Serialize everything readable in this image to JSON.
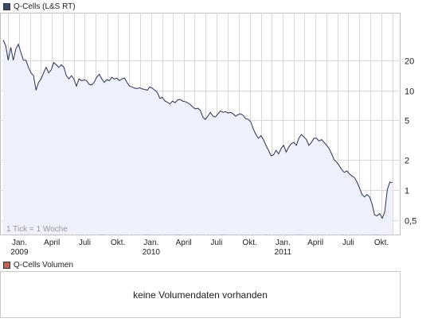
{
  "legend_price": {
    "label": "Q-Cells (L&S RT)",
    "color": "#404a6e"
  },
  "legend_volume": {
    "label": "Q-Cells Volumen",
    "color": "#c8605a"
  },
  "tick_note": "1 Tick = 1 Woche",
  "volume_message": "keine Volumendaten vorhanden",
  "colors": {
    "line": "#2b3150",
    "fill": "#eef0fb",
    "grid": "#d8d8d8",
    "border": "#c0c0c0"
  },
  "chart_data": {
    "type": "area",
    "title": "Q-Cells (L&S RT)",
    "y_scale": "log",
    "ylim": [
      0.35,
      60
    ],
    "xlim": [
      "2008-11-17",
      "2011-11-14"
    ],
    "grid": true,
    "y_ticks": [
      {
        "value": 0.5,
        "label": "0,5"
      },
      {
        "value": 1,
        "label": "1"
      },
      {
        "value": 2,
        "label": "2"
      },
      {
        "value": 5,
        "label": "5"
      },
      {
        "value": 10,
        "label": "10"
      },
      {
        "value": 20,
        "label": "20"
      }
    ],
    "x_ticks": [
      {
        "date": "2009-01-01",
        "label": "Jan.",
        "year": "2009"
      },
      {
        "date": "2009-04-01",
        "label": "April"
      },
      {
        "date": "2009-07-01",
        "label": "Juli"
      },
      {
        "date": "2009-10-01",
        "label": "Okt."
      },
      {
        "date": "2010-01-01",
        "label": "Jan.",
        "year": "2010"
      },
      {
        "date": "2010-04-01",
        "label": "April"
      },
      {
        "date": "2010-07-01",
        "label": "Juli"
      },
      {
        "date": "2010-10-01",
        "label": "Okt."
      },
      {
        "date": "2011-01-01",
        "label": "Jan.",
        "year": "2011"
      },
      {
        "date": "2011-04-01",
        "label": "April"
      },
      {
        "date": "2011-07-01",
        "label": "Juli"
      },
      {
        "date": "2011-10-01",
        "label": "Okt."
      }
    ],
    "series": [
      {
        "points": [
          [
            "2008-11-17",
            32
          ],
          [
            "2008-11-24",
            28
          ],
          [
            "2008-12-01",
            20
          ],
          [
            "2008-12-08",
            27
          ],
          [
            "2008-12-15",
            20
          ],
          [
            "2008-12-22",
            26
          ],
          [
            "2008-12-29",
            29
          ],
          [
            "2009-01-05",
            24
          ],
          [
            "2009-01-12",
            20
          ],
          [
            "2009-01-19",
            20
          ],
          [
            "2009-01-26",
            17
          ],
          [
            "2009-02-02",
            15
          ],
          [
            "2009-02-09",
            14
          ],
          [
            "2009-02-16",
            10
          ],
          [
            "2009-02-23",
            12
          ],
          [
            "2009-03-02",
            13
          ],
          [
            "2009-03-09",
            15
          ],
          [
            "2009-03-16",
            17
          ],
          [
            "2009-03-23",
            15
          ],
          [
            "2009-03-30",
            16
          ],
          [
            "2009-04-06",
            19
          ],
          [
            "2009-04-13",
            18
          ],
          [
            "2009-04-20",
            17
          ],
          [
            "2009-04-27",
            18
          ],
          [
            "2009-05-04",
            17
          ],
          [
            "2009-05-11",
            14
          ],
          [
            "2009-05-18",
            13
          ],
          [
            "2009-05-25",
            14
          ],
          [
            "2009-06-01",
            13
          ],
          [
            "2009-06-08",
            11
          ],
          [
            "2009-06-15",
            13
          ],
          [
            "2009-06-22",
            12.5
          ],
          [
            "2009-06-29",
            12.7
          ],
          [
            "2009-07-06",
            12.5
          ],
          [
            "2009-07-13",
            11.5
          ],
          [
            "2009-07-20",
            11.3
          ],
          [
            "2009-07-27",
            12
          ],
          [
            "2009-08-03",
            13.5
          ],
          [
            "2009-08-10",
            14.5
          ],
          [
            "2009-08-17",
            13
          ],
          [
            "2009-08-24",
            12
          ],
          [
            "2009-08-31",
            12.8
          ],
          [
            "2009-09-07",
            12.5
          ],
          [
            "2009-09-14",
            13.5
          ],
          [
            "2009-09-21",
            13
          ],
          [
            "2009-09-28",
            13.2
          ],
          [
            "2009-10-05",
            12.5
          ],
          [
            "2009-10-12",
            13
          ],
          [
            "2009-10-19",
            13.3
          ],
          [
            "2009-10-26",
            12
          ],
          [
            "2009-11-02",
            11
          ],
          [
            "2009-11-09",
            10.8
          ],
          [
            "2009-11-16",
            10.5
          ],
          [
            "2009-11-23",
            10.4
          ],
          [
            "2009-11-30",
            10.6
          ],
          [
            "2009-12-07",
            10.3
          ],
          [
            "2009-12-14",
            10.2
          ],
          [
            "2009-12-21",
            10
          ],
          [
            "2009-12-28",
            10.8
          ],
          [
            "2010-01-04",
            10.5
          ],
          [
            "2010-01-11",
            10
          ],
          [
            "2010-01-18",
            9.5
          ],
          [
            "2010-01-25",
            8.3
          ],
          [
            "2010-02-01",
            8.5
          ],
          [
            "2010-02-08",
            7.8
          ],
          [
            "2010-02-15",
            7.6
          ],
          [
            "2010-02-22",
            7.3
          ],
          [
            "2010-03-01",
            7.8
          ],
          [
            "2010-03-08",
            7.5
          ],
          [
            "2010-03-15",
            8
          ],
          [
            "2010-03-22",
            8.1
          ],
          [
            "2010-03-29",
            7.8
          ],
          [
            "2010-04-05",
            7.7
          ],
          [
            "2010-04-12",
            7.5
          ],
          [
            "2010-04-19",
            7.2
          ],
          [
            "2010-04-26",
            6.8
          ],
          [
            "2010-05-03",
            6.5
          ],
          [
            "2010-05-10",
            6.6
          ],
          [
            "2010-05-17",
            6.3
          ],
          [
            "2010-05-24",
            5.4
          ],
          [
            "2010-05-31",
            5.1
          ],
          [
            "2010-06-07",
            5.5
          ],
          [
            "2010-06-14",
            6
          ],
          [
            "2010-06-21",
            5.5
          ],
          [
            "2010-06-28",
            5.4
          ],
          [
            "2010-07-05",
            5.8
          ],
          [
            "2010-07-12",
            6.2
          ],
          [
            "2010-07-19",
            6
          ],
          [
            "2010-07-26",
            6.1
          ],
          [
            "2010-08-02",
            5.9
          ],
          [
            "2010-08-09",
            6
          ],
          [
            "2010-08-16",
            5.8
          ],
          [
            "2010-08-23",
            5.5
          ],
          [
            "2010-08-30",
            5.7
          ],
          [
            "2010-09-06",
            5.8
          ],
          [
            "2010-09-13",
            5.6
          ],
          [
            "2010-09-20",
            5.2
          ],
          [
            "2010-09-27",
            5.1
          ],
          [
            "2010-10-04",
            4.8
          ],
          [
            "2010-10-11",
            4.1
          ],
          [
            "2010-10-18",
            3.6
          ],
          [
            "2010-10-25",
            3.3
          ],
          [
            "2010-11-01",
            3.5
          ],
          [
            "2010-11-08",
            3.2
          ],
          [
            "2010-11-15",
            2.8
          ],
          [
            "2010-11-22",
            2.5
          ],
          [
            "2010-11-29",
            2.2
          ],
          [
            "2010-12-06",
            2.25
          ],
          [
            "2010-12-13",
            2.5
          ],
          [
            "2010-12-20",
            2.3
          ],
          [
            "2010-12-27",
            2.6
          ],
          [
            "2011-01-03",
            2.8
          ],
          [
            "2011-01-10",
            2.4
          ],
          [
            "2011-01-17",
            2.7
          ],
          [
            "2011-01-24",
            2.9
          ],
          [
            "2011-01-31",
            3
          ],
          [
            "2011-02-07",
            2.8
          ],
          [
            "2011-02-14",
            3.3
          ],
          [
            "2011-02-21",
            3.6
          ],
          [
            "2011-02-28",
            3.4
          ],
          [
            "2011-03-07",
            3.2
          ],
          [
            "2011-03-14",
            2.8
          ],
          [
            "2011-03-21",
            3.0
          ],
          [
            "2011-03-28",
            3.3
          ],
          [
            "2011-04-04",
            3.3
          ],
          [
            "2011-04-11",
            3.1
          ],
          [
            "2011-04-18",
            3.2
          ],
          [
            "2011-04-25",
            3.0
          ],
          [
            "2011-05-02",
            2.8
          ],
          [
            "2011-05-09",
            2.6
          ],
          [
            "2011-05-16",
            2.3
          ],
          [
            "2011-05-23",
            2.0
          ],
          [
            "2011-05-30",
            1.9
          ],
          [
            "2011-06-06",
            1.75
          ],
          [
            "2011-06-13",
            1.6
          ],
          [
            "2011-06-20",
            1.5
          ],
          [
            "2011-06-27",
            1.55
          ],
          [
            "2011-07-04",
            1.45
          ],
          [
            "2011-07-11",
            1.38
          ],
          [
            "2011-07-18",
            1.33
          ],
          [
            "2011-07-25",
            1.2
          ],
          [
            "2011-08-01",
            1.05
          ],
          [
            "2011-08-08",
            0.9
          ],
          [
            "2011-08-15",
            0.85
          ],
          [
            "2011-08-22",
            0.9
          ],
          [
            "2011-08-29",
            0.85
          ],
          [
            "2011-09-05",
            0.72
          ],
          [
            "2011-09-12",
            0.56
          ],
          [
            "2011-09-19",
            0.55
          ],
          [
            "2011-09-26",
            0.58
          ],
          [
            "2011-10-03",
            0.52
          ],
          [
            "2011-10-10",
            0.6
          ],
          [
            "2011-10-17",
            1.0
          ],
          [
            "2011-10-24",
            1.2
          ],
          [
            "2011-10-31",
            1.18
          ]
        ]
      }
    ]
  }
}
